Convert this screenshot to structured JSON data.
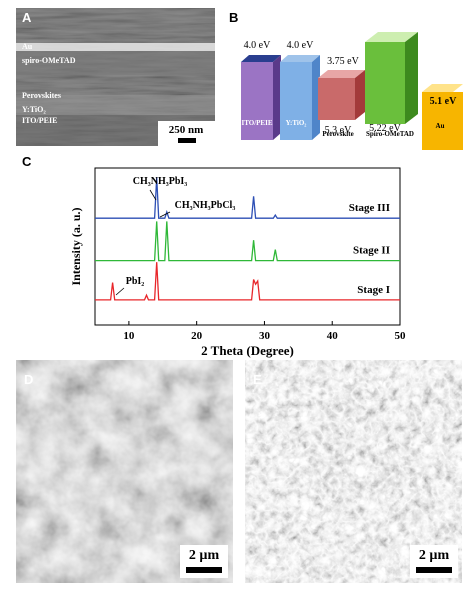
{
  "panel_a": {
    "label": "A",
    "layers": [
      "Au",
      "spiro-OMeTAD",
      "Perovskites",
      "Y:TiO₂",
      "ITO/PEIE"
    ],
    "scale_bar": "250 nm"
  },
  "panel_b": {
    "label": "B",
    "materials": [
      {
        "name": "ITO/PEIE",
        "top": "4.0 eV"
      },
      {
        "name": "Y:TiO₂",
        "top": "4.0 eV"
      },
      {
        "name": "Perovskite",
        "top": "3.75 eV",
        "bottom": "5.3 eV"
      },
      {
        "name": "Spiro-OMeTAD",
        "bottom": "5.22 eV"
      },
      {
        "name": "Au",
        "top": "5.1 eV"
      }
    ]
  },
  "chart_data": {
    "type": "line",
    "panel_label": "C",
    "x_label": "2 Theta (Degree)",
    "y_label": "Intensity (a. u.)",
    "x": [
      5,
      7.3,
      7.6,
      7.9,
      12.3,
      12.6,
      12.9,
      13.8,
      14.1,
      14.4,
      15.3,
      15.6,
      15.9,
      28.1,
      28.4,
      28.7,
      29.0,
      29.3,
      31.3,
      31.6,
      31.9,
      50
    ],
    "series": [
      {
        "name": "Stage I",
        "color": "#e8262a",
        "values": [
          16,
          16,
          27,
          16,
          16,
          19,
          16,
          16,
          40,
          16,
          16,
          16,
          16,
          16,
          29,
          26,
          28,
          16,
          16,
          16,
          16,
          16
        ]
      },
      {
        "name": "Stage II",
        "color": "#2fb838",
        "values": [
          41,
          41,
          41,
          41,
          41,
          41,
          41,
          41,
          66,
          41,
          41,
          66,
          41,
          41,
          54,
          41,
          41,
          41,
          41,
          48,
          41,
          41
        ]
      },
      {
        "name": "Stage III",
        "color": "#2d4fb5",
        "values": [
          68,
          68,
          68,
          68,
          68,
          68,
          68,
          68,
          94,
          68,
          68,
          72,
          68,
          68,
          82,
          68,
          68,
          68,
          68,
          70,
          68,
          68
        ]
      }
    ],
    "annotations": [
      "CH₃NH₃PbI₃",
      "CH₃NH₃PbCl₃",
      "PbI₂"
    ],
    "xlim": [
      5,
      50
    ],
    "xticks": [
      10,
      20,
      30,
      40,
      50
    ],
    "ylim": [
      0,
      100
    ]
  },
  "panel_d": {
    "label": "D",
    "scale_bar": "2 µm"
  },
  "panel_e": {
    "label": "E",
    "scale_bar": "2 µm"
  }
}
